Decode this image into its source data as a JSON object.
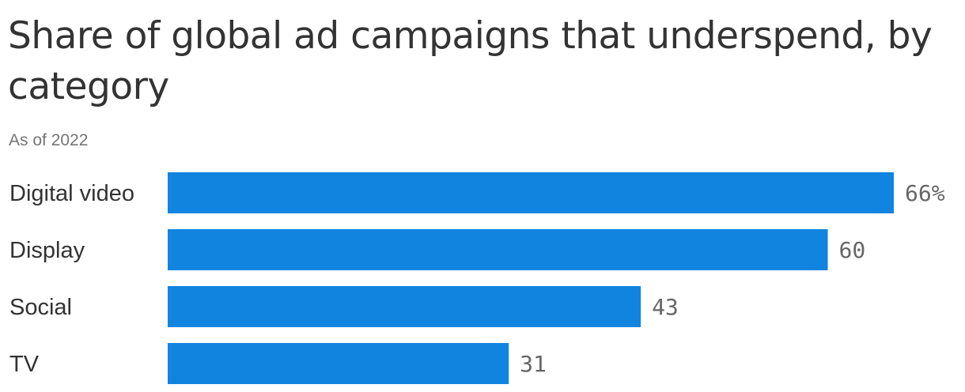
{
  "chart_data": {
    "type": "bar",
    "orientation": "horizontal",
    "title": "Share of global ad campaigns that underspend, by category",
    "subtitle": "As of 2022",
    "categories": [
      "Digital video",
      "Display",
      "Social",
      "TV"
    ],
    "values": [
      66,
      60,
      43,
      31
    ],
    "value_labels": [
      "66%",
      "60",
      "43",
      "31"
    ],
    "unit": "%",
    "xlim": [
      0,
      66
    ],
    "grid": false,
    "legend": "none",
    "bar_color": "#1184e0"
  }
}
